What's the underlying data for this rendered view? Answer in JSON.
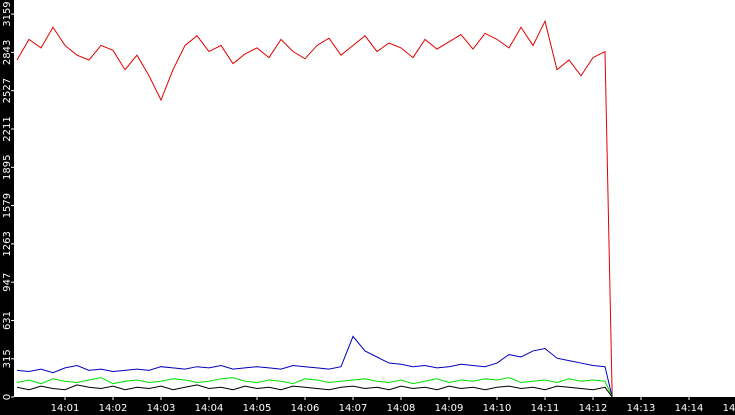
{
  "chart_data": {
    "type": "line",
    "x": [
      0,
      0.25,
      0.5,
      0.75,
      1,
      1.25,
      1.5,
      1.75,
      2,
      2.25,
      2.5,
      2.75,
      3,
      3.25,
      3.5,
      3.75,
      4,
      4.25,
      4.5,
      4.75,
      5,
      5.25,
      5.5,
      5.75,
      6,
      6.25,
      6.5,
      6.75,
      7,
      7.25,
      7.5,
      7.75,
      8,
      8.25,
      8.5,
      8.75,
      9,
      9.25,
      9.5,
      9.75,
      10,
      10.25,
      10.5,
      10.75,
      11,
      11.25,
      11.5,
      11.75,
      12,
      12.25,
      12.4
    ],
    "series": [
      {
        "color": "#e00000",
        "values": [
          2780,
          2950,
          2880,
          3050,
          2900,
          2820,
          2780,
          2900,
          2860,
          2700,
          2820,
          2650,
          2450,
          2700,
          2900,
          2980,
          2850,
          2900,
          2750,
          2830,
          2880,
          2800,
          2950,
          2850,
          2790,
          2900,
          2960,
          2820,
          2900,
          2980,
          2850,
          2920,
          2880,
          2800,
          2950,
          2870,
          2930,
          2990,
          2870,
          3000,
          2950,
          2880,
          3050,
          2900,
          3100,
          2700,
          2780,
          2650,
          2800,
          2850,
          0
        ]
      },
      {
        "color": "#0000c0",
        "values": [
          220,
          210,
          230,
          200,
          240,
          260,
          220,
          230,
          210,
          220,
          230,
          220,
          250,
          240,
          230,
          250,
          240,
          260,
          230,
          240,
          250,
          240,
          230,
          260,
          250,
          240,
          230,
          250,
          500,
          380,
          330,
          280,
          270,
          250,
          260,
          240,
          250,
          270,
          260,
          250,
          280,
          350,
          330,
          380,
          400,
          320,
          300,
          280,
          260,
          250,
          0
        ]
      },
      {
        "color": "#00e000",
        "values": [
          120,
          140,
          110,
          150,
          130,
          120,
          140,
          160,
          110,
          130,
          140,
          120,
          130,
          150,
          140,
          120,
          130,
          150,
          160,
          130,
          120,
          140,
          130,
          110,
          150,
          140,
          120,
          130,
          140,
          150,
          130,
          120,
          140,
          110,
          130,
          150,
          120,
          140,
          130,
          150,
          140,
          160,
          120,
          130,
          140,
          120,
          150,
          130,
          140,
          130,
          0
        ]
      },
      {
        "color": "#000000",
        "values": [
          80,
          60,
          90,
          70,
          60,
          100,
          80,
          70,
          90,
          60,
          80,
          70,
          90,
          60,
          80,
          100,
          70,
          80,
          60,
          90,
          70,
          80,
          60,
          90,
          80,
          70,
          60,
          80,
          90,
          70,
          80,
          60,
          90,
          70,
          80,
          60,
          90,
          70,
          80,
          60,
          80,
          90,
          70,
          80,
          60,
          90,
          80,
          70,
          60,
          80,
          0
        ]
      }
    ],
    "xlim": [
      0,
      15
    ],
    "xticks": [
      {
        "value": 1,
        "label": "14:01"
      },
      {
        "value": 2,
        "label": "14:02"
      },
      {
        "value": 3,
        "label": "14:03"
      },
      {
        "value": 4,
        "label": "14:04"
      },
      {
        "value": 5,
        "label": "14:05"
      },
      {
        "value": 6,
        "label": "14:06"
      },
      {
        "value": 7,
        "label": "14:07"
      },
      {
        "value": 8,
        "label": "14:08"
      },
      {
        "value": 9,
        "label": "14:09"
      },
      {
        "value": 10,
        "label": "14:10"
      },
      {
        "value": 11,
        "label": "14:11"
      },
      {
        "value": 12,
        "label": "14:12"
      },
      {
        "value": 13,
        "label": "14:13"
      },
      {
        "value": 14,
        "label": "14:14"
      },
      {
        "value": 15,
        "label": "14:15"
      }
    ],
    "ylim": [
      0,
      3275
    ],
    "yticks": [
      0,
      315,
      631,
      947,
      1263,
      1579,
      1895,
      2211,
      2527,
      2843,
      3159
    ]
  }
}
